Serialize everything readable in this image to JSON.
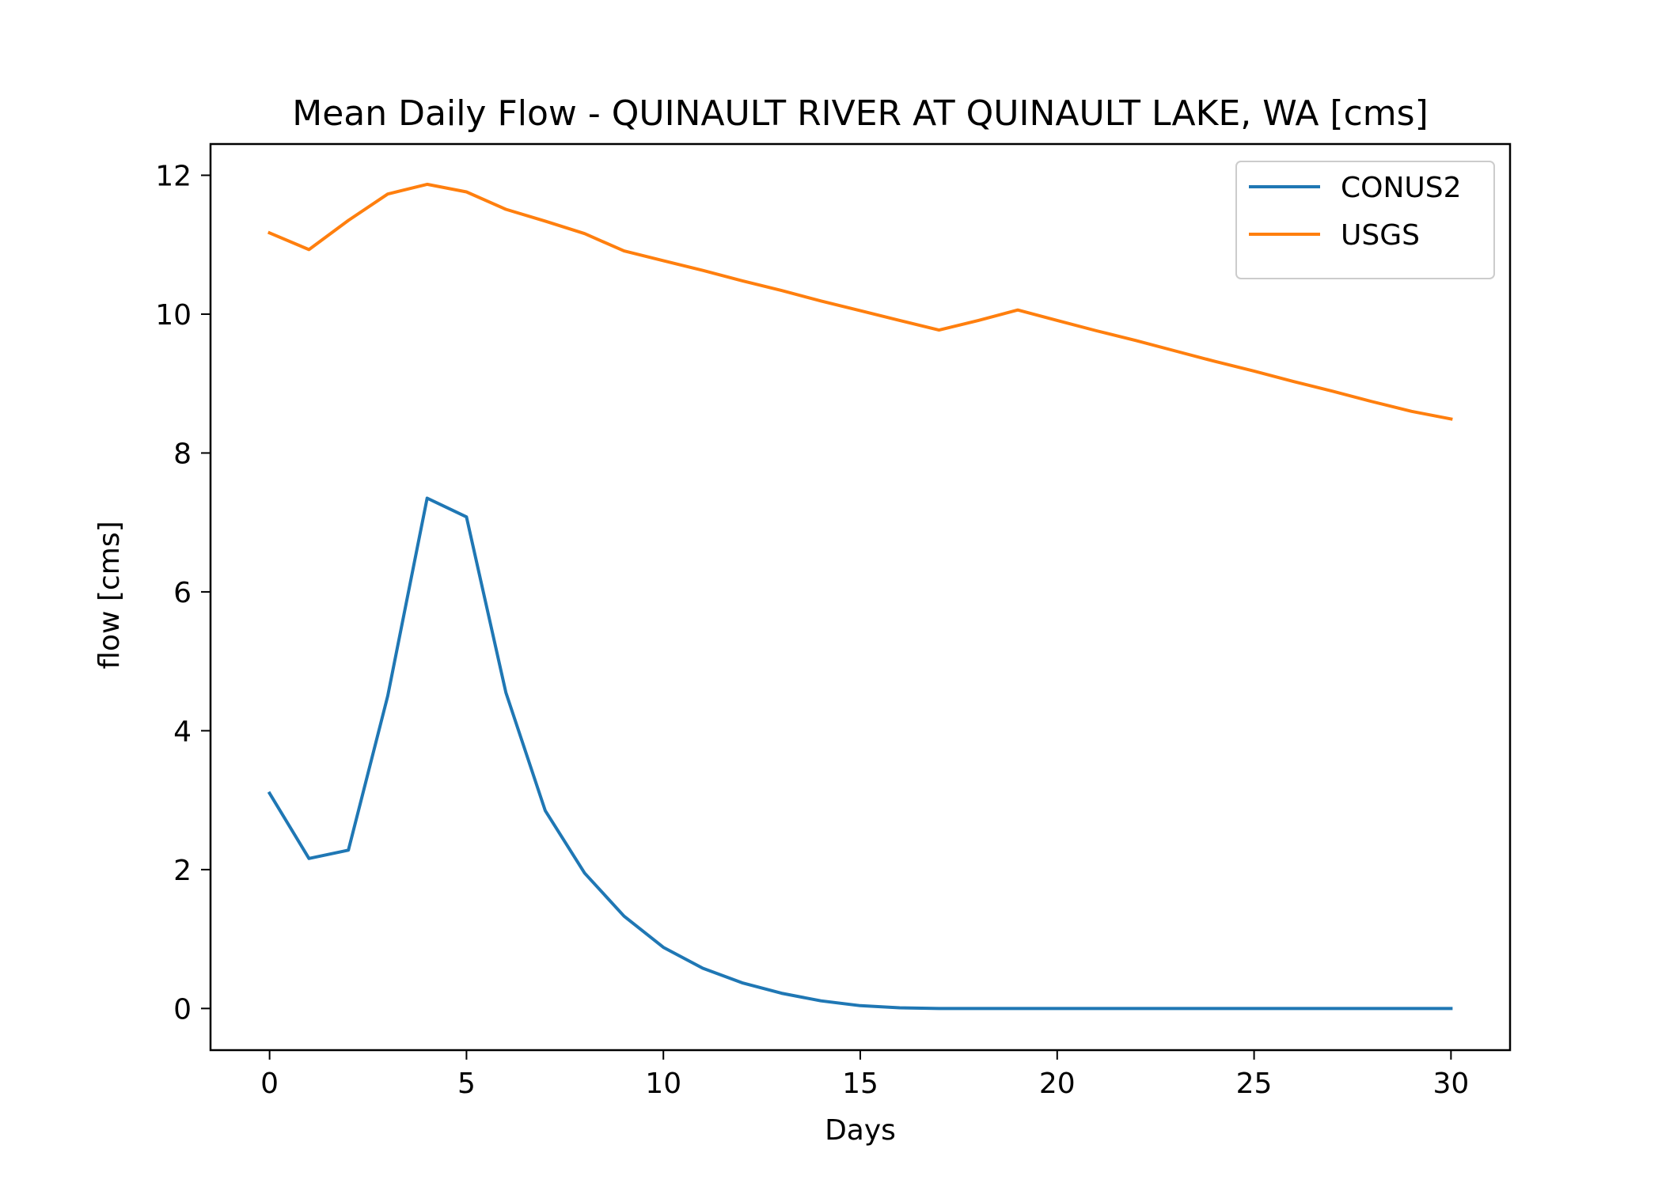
{
  "chart_data": {
    "type": "line",
    "title": "Mean Daily Flow - QUINAULT RIVER AT QUINAULT LAKE, WA [cms]",
    "xlabel": "Days",
    "ylabel": "flow [cms]",
    "xlim": [
      -1.5,
      31.5
    ],
    "ylim": [
      -0.6,
      12.45
    ],
    "xticks": [
      0,
      5,
      10,
      15,
      20,
      25,
      30
    ],
    "yticks": [
      0,
      2,
      4,
      6,
      8,
      10,
      12
    ],
    "grid": false,
    "legend_position": "top-right",
    "x": [
      0,
      1,
      2,
      3,
      4,
      5,
      6,
      7,
      8,
      9,
      10,
      11,
      12,
      13,
      14,
      15,
      16,
      17,
      18,
      19,
      20,
      21,
      22,
      23,
      24,
      25,
      26,
      27,
      28,
      29,
      30
    ],
    "series": [
      {
        "name": "CONUS2",
        "color": "#1f77b4",
        "values": [
          3.1,
          2.16,
          2.28,
          4.5,
          7.35,
          7.08,
          4.55,
          2.85,
          1.95,
          1.33,
          0.88,
          0.58,
          0.37,
          0.22,
          0.11,
          0.04,
          0.01,
          0.0,
          0.0,
          0.0,
          0.0,
          0.0,
          0.0,
          0.0,
          0.0,
          0.0,
          0.0,
          0.0,
          0.0,
          0.0,
          0.0
        ]
      },
      {
        "name": "USGS",
        "color": "#ff7f0e",
        "values": [
          11.17,
          10.93,
          11.35,
          11.73,
          11.87,
          11.76,
          11.51,
          11.34,
          11.16,
          10.91,
          10.77,
          10.63,
          10.48,
          10.34,
          10.19,
          10.05,
          9.91,
          9.77,
          9.91,
          10.06,
          9.91,
          9.76,
          9.62,
          9.47,
          9.32,
          9.18,
          9.03,
          8.89,
          8.74,
          8.6,
          8.49
        ]
      }
    ]
  }
}
